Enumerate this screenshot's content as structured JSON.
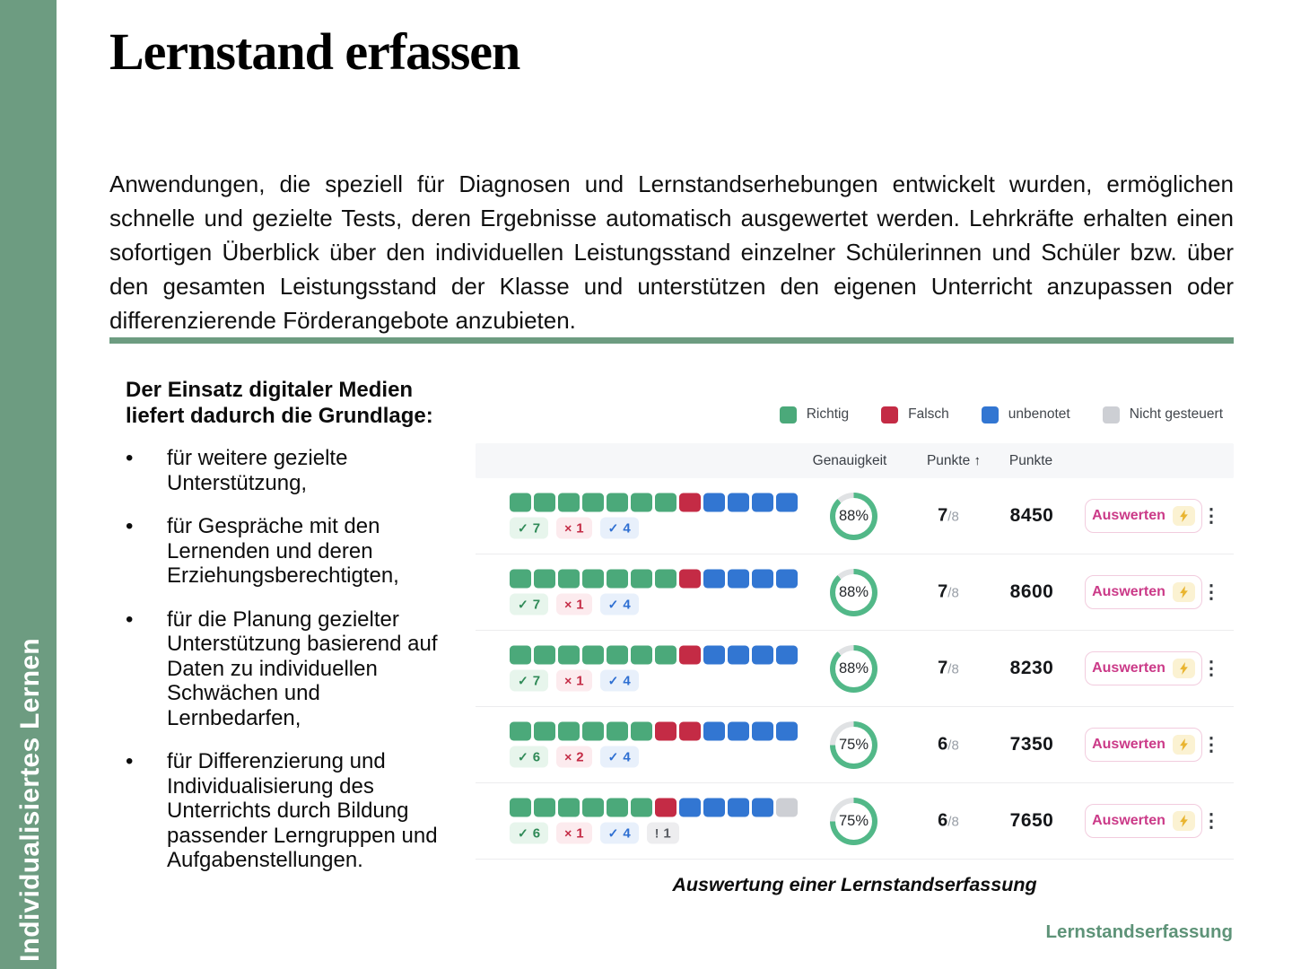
{
  "sidebar": {
    "label": "Individualisiertes Lernen"
  },
  "title": "Lernstand erfassen",
  "intro": "Anwendungen, die speziell für Diagnosen und Lernstandserhebungen entwickelt wurden, ermöglichen schnelle und gezielte Tests, deren Ergebnisse automatisch ausgewertet werden. Lehrkräfte erhalten einen sofortigen Überblick über den individuellen Leistungsstand einzelner Schülerinnen und Schüler bzw. über den gesamten Leistungsstand der Klasse und unterstützen den eigenen Unterricht anzupassen oder differenzierende Förderangebote anzubieten.",
  "left_panel": {
    "heading": "Der Einsatz digitaler Medien liefert dadurch die Grundlage:",
    "bullets": [
      "für weitere gezielte Unterstützung,",
      "für Gespräche mit den Lernenden und deren Erziehungsberechtigten,",
      "für die Planung gezielter Unterstützung basierend auf Daten zu individuellen Schwächen und Lernbedarfen,",
      "für Differenzierung und Individualisierung des Unterrichts durch Bildung passender Lerngruppen und Aufgabenstellungen."
    ]
  },
  "colors": {
    "correct": "#4BA97A",
    "wrong": "#C42B45",
    "ungraded": "#3276D2",
    "unscored": "#CDCFD4",
    "accent": "#6D9C81",
    "ring": "#52B888",
    "ring_track": "#E0E2E4"
  },
  "badge_icons": {
    "correct": "✓",
    "wrong": "×",
    "ungraded": "✓",
    "unscored": "!"
  },
  "table": {
    "legend": [
      {
        "label": "Richtig",
        "type": "correct"
      },
      {
        "label": "Falsch",
        "type": "wrong"
      },
      {
        "label": "unbenotet",
        "type": "ungraded"
      },
      {
        "label": "Nicht gesteuert",
        "type": "unscored"
      }
    ],
    "columns": [
      {
        "key": "genauigkeit",
        "label": "Genauigkeit",
        "arrow": ""
      },
      {
        "key": "punkte-sorted",
        "label": "Punkte",
        "arrow": "↑"
      },
      {
        "key": "punkte",
        "label": "Punkte",
        "arrow": ""
      }
    ],
    "action_label": "Auswerten",
    "menu_icon": "⋮",
    "rows": [
      {
        "segments": [
          {
            "type": "correct",
            "count": 7
          },
          {
            "type": "wrong",
            "count": 1
          },
          {
            "type": "ungraded",
            "count": 4
          }
        ],
        "accuracy": 88,
        "accuracy_label": "88%",
        "score": "7",
        "score_max": "/8",
        "points": "8450"
      },
      {
        "segments": [
          {
            "type": "correct",
            "count": 7
          },
          {
            "type": "wrong",
            "count": 1
          },
          {
            "type": "ungraded",
            "count": 4
          }
        ],
        "accuracy": 88,
        "accuracy_label": "88%",
        "score": "7",
        "score_max": "/8",
        "points": "8600"
      },
      {
        "segments": [
          {
            "type": "correct",
            "count": 7
          },
          {
            "type": "wrong",
            "count": 1
          },
          {
            "type": "ungraded",
            "count": 4
          }
        ],
        "accuracy": 88,
        "accuracy_label": "88%",
        "score": "7",
        "score_max": "/8",
        "points": "8230"
      },
      {
        "segments": [
          {
            "type": "correct",
            "count": 6
          },
          {
            "type": "wrong",
            "count": 2
          },
          {
            "type": "ungraded",
            "count": 4
          }
        ],
        "accuracy": 75,
        "accuracy_label": "75%",
        "score": "6",
        "score_max": "/8",
        "points": "7350"
      },
      {
        "segments": [
          {
            "type": "correct",
            "count": 6
          },
          {
            "type": "wrong",
            "count": 1
          },
          {
            "type": "ungraded",
            "count": 4
          },
          {
            "type": "unscored",
            "count": 1
          }
        ],
        "accuracy": 75,
        "accuracy_label": "75%",
        "score": "6",
        "score_max": "/8",
        "points": "7650"
      }
    ],
    "caption": "Auswertung einer Lernstandserfassung"
  },
  "footer": {
    "label": "Lernstandserfassung"
  }
}
